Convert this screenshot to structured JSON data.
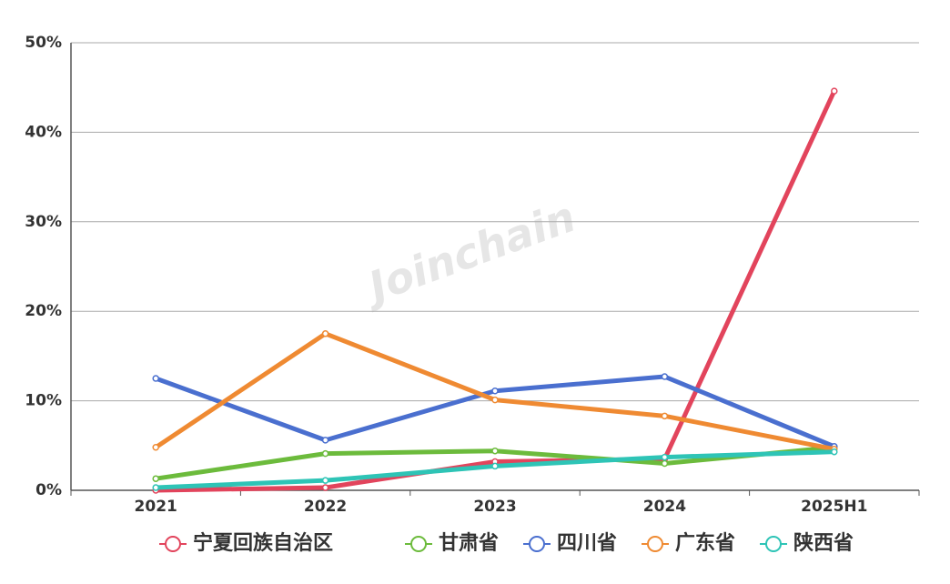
{
  "chart_data": {
    "type": "line",
    "watermark": "Joinchain",
    "categories": [
      "2021",
      "2022",
      "2023",
      "2024",
      "2025H1"
    ],
    "series": [
      {
        "name": "宁夏回族自治区",
        "color": "#e2445c",
        "values": [
          0.0,
          0.3,
          3.2,
          3.5,
          44.6
        ]
      },
      {
        "name": "甘肃省",
        "color": "#6cbb3c",
        "values": [
          1.3,
          4.1,
          4.4,
          3.0,
          4.8
        ]
      },
      {
        "name": "四川省",
        "color": "#4a6fcf",
        "values": [
          12.5,
          5.6,
          11.1,
          12.7,
          4.9
        ]
      },
      {
        "name": "广东省",
        "color": "#ef8a32",
        "values": [
          4.8,
          17.5,
          10.1,
          8.3,
          4.6
        ]
      },
      {
        "name": "陕西省",
        "color": "#2ec4b6",
        "values": [
          0.3,
          1.1,
          2.7,
          3.7,
          4.3
        ]
      }
    ],
    "ylim": [
      0,
      50
    ],
    "yticks": [
      {
        "value": 0,
        "label": "0%"
      },
      {
        "value": 10,
        "label": "10%"
      },
      {
        "value": 20,
        "label": "20%"
      },
      {
        "value": 30,
        "label": "30%"
      },
      {
        "value": 40,
        "label": "40%"
      },
      {
        "value": 50,
        "label": "50%"
      }
    ],
    "grid": true,
    "legend": "bottom"
  }
}
